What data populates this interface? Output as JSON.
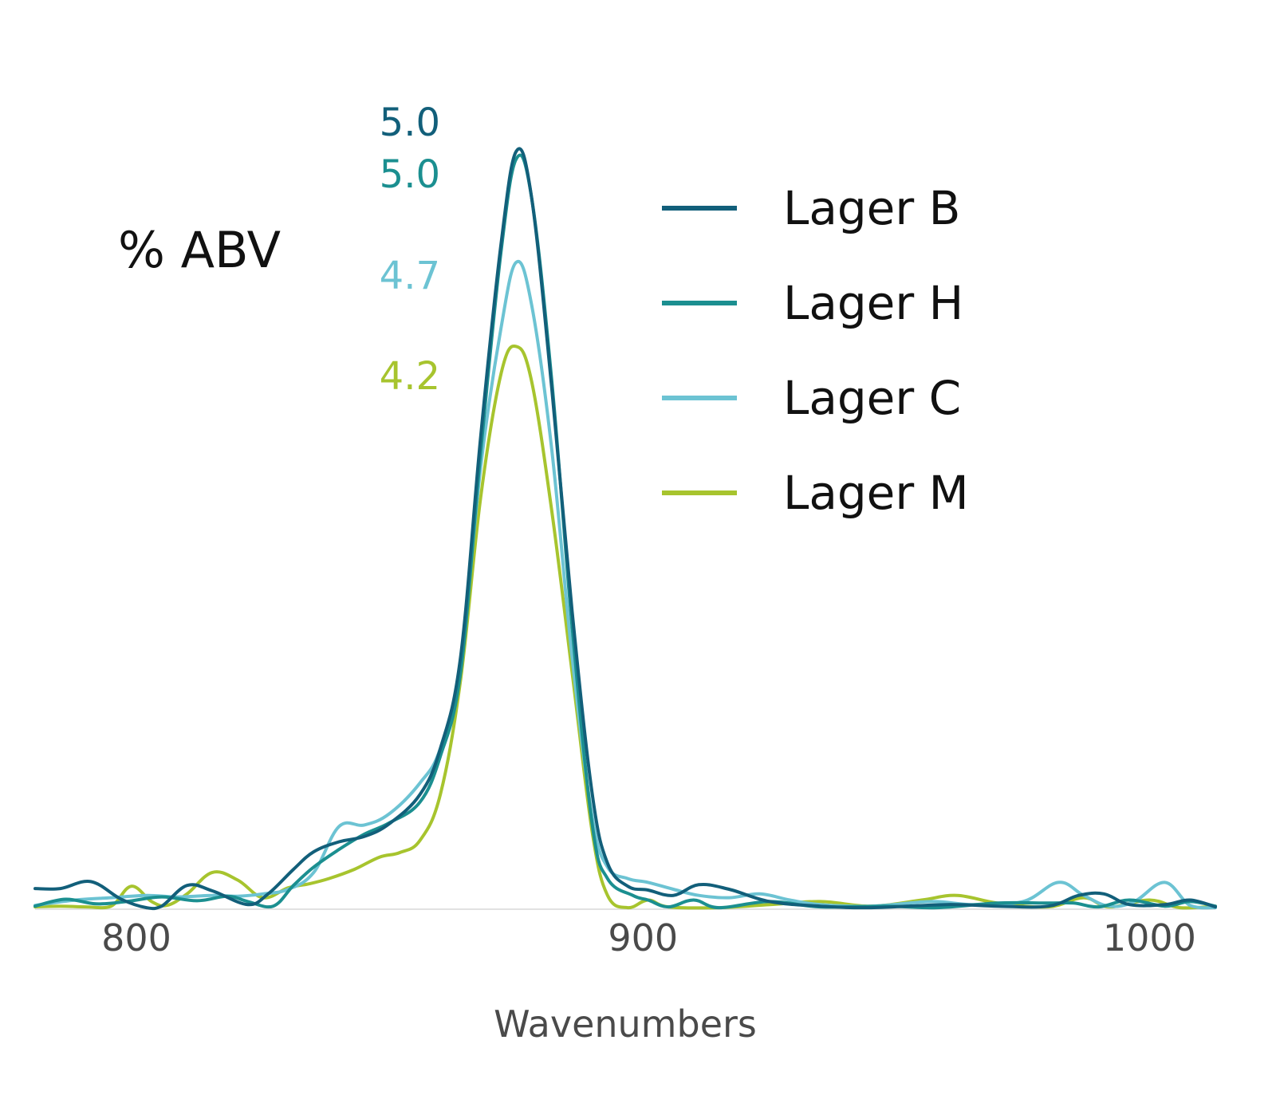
{
  "chart_data": {
    "type": "line",
    "title": "",
    "xlabel": "Wavenumbers",
    "ylabel": "% ABV",
    "xlim": [
      780,
      1013
    ],
    "ylim": [
      0,
      1.0
    ],
    "grid": false,
    "x_ticks": [
      800,
      900,
      1000
    ],
    "legend_position": "top-right",
    "series": [
      {
        "name": "Lager B",
        "color": "#125f7a",
        "peak_label": "5.0",
        "points": [
          [
            780,
            0.027
          ],
          [
            785,
            0.027
          ],
          [
            791,
            0.036
          ],
          [
            797,
            0.013
          ],
          [
            802,
            0.002
          ],
          [
            805,
            0.004
          ],
          [
            810,
            0.031
          ],
          [
            815,
            0.024
          ],
          [
            822,
            0.006
          ],
          [
            826,
            0.02
          ],
          [
            831,
            0.052
          ],
          [
            835,
            0.075
          ],
          [
            840,
            0.088
          ],
          [
            845,
            0.095
          ],
          [
            850,
            0.112
          ],
          [
            856,
            0.15
          ],
          [
            860,
            0.21
          ],
          [
            864,
            0.33
          ],
          [
            868,
            0.62
          ],
          [
            872,
            0.87
          ],
          [
            875,
            0.99
          ],
          [
            878,
            0.93
          ],
          [
            882,
            0.68
          ],
          [
            886,
            0.39
          ],
          [
            890,
            0.15
          ],
          [
            893,
            0.06
          ],
          [
            897,
            0.03
          ],
          [
            901,
            0.025
          ],
          [
            906,
            0.018
          ],
          [
            911,
            0.032
          ],
          [
            917,
            0.026
          ],
          [
            925,
            0.01
          ],
          [
            935,
            0.004
          ],
          [
            945,
            0.002
          ],
          [
            960,
            0.006
          ],
          [
            970,
            0.004
          ],
          [
            980,
            0.004
          ],
          [
            986,
            0.018
          ],
          [
            991,
            0.02
          ],
          [
            996,
            0.006
          ],
          [
            1003,
            0.006
          ],
          [
            1008,
            0.012
          ],
          [
            1013,
            0.003
          ]
        ]
      },
      {
        "name": "Lager H",
        "color": "#1b8f90",
        "peak_label": "5.0",
        "points": [
          [
            780,
            0.004
          ],
          [
            786,
            0.013
          ],
          [
            792,
            0.007
          ],
          [
            798,
            0.01
          ],
          [
            805,
            0.016
          ],
          [
            812,
            0.011
          ],
          [
            818,
            0.017
          ],
          [
            822,
            0.01
          ],
          [
            827,
            0.004
          ],
          [
            831,
            0.031
          ],
          [
            835,
            0.055
          ],
          [
            840,
            0.078
          ],
          [
            845,
            0.098
          ],
          [
            850,
            0.113
          ],
          [
            856,
            0.14
          ],
          [
            860,
            0.2
          ],
          [
            864,
            0.31
          ],
          [
            868,
            0.6
          ],
          [
            872,
            0.86
          ],
          [
            875,
            0.98
          ],
          [
            878,
            0.93
          ],
          [
            882,
            0.69
          ],
          [
            886,
            0.37
          ],
          [
            890,
            0.11
          ],
          [
            893,
            0.04
          ],
          [
            898,
            0.018
          ],
          [
            901,
            0.012
          ],
          [
            905,
            0.003
          ],
          [
            910,
            0.012
          ],
          [
            915,
            0.002
          ],
          [
            925,
            0.01
          ],
          [
            935,
            0.003
          ],
          [
            948,
            0.004
          ],
          [
            958,
            0.002
          ],
          [
            970,
            0.008
          ],
          [
            980,
            0.008
          ],
          [
            985,
            0.008
          ],
          [
            990,
            0.003
          ],
          [
            996,
            0.012
          ],
          [
            1003,
            0.004
          ],
          [
            1008,
            0.01
          ],
          [
            1013,
            0.004
          ]
        ]
      },
      {
        "name": "Lager C",
        "color": "#6cc3d3",
        "peak_label": "4.7",
        "points": [
          [
            780,
            0.005
          ],
          [
            788,
            0.012
          ],
          [
            795,
            0.015
          ],
          [
            802,
            0.018
          ],
          [
            808,
            0.016
          ],
          [
            815,
            0.018
          ],
          [
            820,
            0.017
          ],
          [
            825,
            0.02
          ],
          [
            830,
            0.026
          ],
          [
            835,
            0.048
          ],
          [
            840,
            0.108
          ],
          [
            845,
            0.11
          ],
          [
            850,
            0.125
          ],
          [
            856,
            0.165
          ],
          [
            860,
            0.21
          ],
          [
            864,
            0.32
          ],
          [
            868,
            0.58
          ],
          [
            872,
            0.76
          ],
          [
            875,
            0.845
          ],
          [
            878,
            0.79
          ],
          [
            882,
            0.6
          ],
          [
            886,
            0.33
          ],
          [
            890,
            0.12
          ],
          [
            893,
            0.055
          ],
          [
            897,
            0.04
          ],
          [
            901,
            0.035
          ],
          [
            906,
            0.026
          ],
          [
            911,
            0.018
          ],
          [
            917,
            0.015
          ],
          [
            923,
            0.02
          ],
          [
            929,
            0.012
          ],
          [
            935,
            0.006
          ],
          [
            945,
            0.004
          ],
          [
            957,
            0.01
          ],
          [
            965,
            0.006
          ],
          [
            975,
            0.01
          ],
          [
            982,
            0.035
          ],
          [
            987,
            0.018
          ],
          [
            992,
            0.004
          ],
          [
            997,
            0.01
          ],
          [
            1003,
            0.035
          ],
          [
            1008,
            0.005
          ],
          [
            1013,
            0.002
          ]
        ]
      },
      {
        "name": "Lager M",
        "color": "#a7c42e",
        "peak_label": "4.2",
        "points": [
          [
            780,
            0.003
          ],
          [
            785,
            0.004
          ],
          [
            790,
            0.003
          ],
          [
            795,
            0.004
          ],
          [
            799,
            0.03
          ],
          [
            803,
            0.01
          ],
          [
            806,
            0.005
          ],
          [
            810,
            0.02
          ],
          [
            815,
            0.048
          ],
          [
            820,
            0.038
          ],
          [
            825,
            0.015
          ],
          [
            830,
            0.028
          ],
          [
            834,
            0.033
          ],
          [
            838,
            0.04
          ],
          [
            843,
            0.052
          ],
          [
            848,
            0.068
          ],
          [
            852,
            0.074
          ],
          [
            856,
            0.09
          ],
          [
            860,
            0.15
          ],
          [
            864,
            0.3
          ],
          [
            868,
            0.54
          ],
          [
            872,
            0.7
          ],
          [
            875,
            0.735
          ],
          [
            878,
            0.69
          ],
          [
            882,
            0.52
          ],
          [
            886,
            0.31
          ],
          [
            890,
            0.1
          ],
          [
            893,
            0.018
          ],
          [
            897,
            0.002
          ],
          [
            901,
            0.012
          ],
          [
            905,
            0.003
          ],
          [
            915,
            0.002
          ],
          [
            925,
            0.006
          ],
          [
            935,
            0.01
          ],
          [
            945,
            0.004
          ],
          [
            955,
            0.012
          ],
          [
            962,
            0.018
          ],
          [
            970,
            0.008
          ],
          [
            980,
            0.003
          ],
          [
            987,
            0.015
          ],
          [
            992,
            0.003
          ],
          [
            1000,
            0.012
          ],
          [
            1006,
            0.002
          ],
          [
            1013,
            0.004
          ]
        ]
      }
    ]
  }
}
